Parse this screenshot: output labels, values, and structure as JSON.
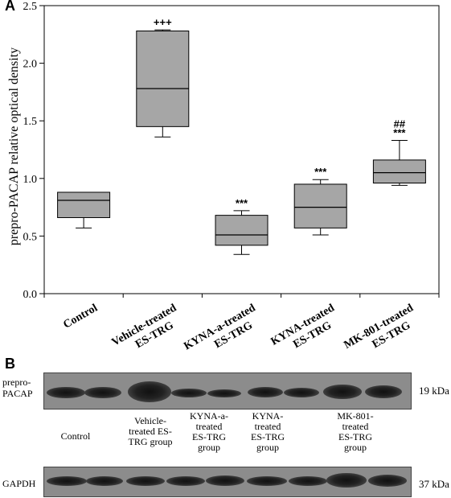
{
  "panel_a_label": "A",
  "panel_b_label": "B",
  "chart_data": {
    "type": "box",
    "ylabel": "prepro-PACAP relative optical density",
    "ylim": [
      0,
      2.5
    ],
    "yticks": [
      "0.0",
      "0.5",
      "1.0",
      "1.5",
      "2.0",
      "2.5"
    ],
    "categories": [
      [
        "Control"
      ],
      [
        "Vehicle-treated",
        "ES-TRG"
      ],
      [
        "KYNA-a-treated",
        "ES-TRG"
      ],
      [
        "KYNA-treated",
        "ES-TRG"
      ],
      [
        "MK-801-treated",
        "ES-TRG"
      ]
    ],
    "boxes": [
      {
        "whisker_low": 0.57,
        "q1": 0.66,
        "median": 0.81,
        "q3": 0.88,
        "whisker_high": 0.88
      },
      {
        "whisker_low": 1.36,
        "q1": 1.45,
        "median": 1.78,
        "q3": 2.28,
        "whisker_high": 2.29
      },
      {
        "whisker_low": 0.34,
        "q1": 0.42,
        "median": 0.51,
        "q3": 0.68,
        "whisker_high": 0.72
      },
      {
        "whisker_low": 0.51,
        "q1": 0.57,
        "median": 0.75,
        "q3": 0.95,
        "whisker_high": 0.99
      },
      {
        "whisker_low": 0.94,
        "q1": 0.96,
        "median": 1.05,
        "q3": 1.16,
        "whisker_high": 1.33
      }
    ],
    "annotations": [
      [
        "+++"
      ],
      [
        "***"
      ],
      [
        "***"
      ],
      [
        "##",
        "***"
      ]
    ],
    "annotation_targets": [
      1,
      2,
      3,
      4
    ],
    "box_color": "#a6a6a6"
  },
  "blot": {
    "row1_label": [
      "prepro-",
      "PACAP"
    ],
    "row1_kda": "19 kDa",
    "row2_label": "GAPDH",
    "row2_kda": "37 kDa",
    "lane_labels": [
      [
        "Control"
      ],
      [
        "Vehicle-",
        "treated ES-",
        "TRG group"
      ],
      [
        "KYNA-a-",
        "treated",
        "ES-TRG",
        "group"
      ],
      [
        "KYNA-",
        "treated",
        "ES-TRG",
        "group"
      ],
      [
        "MK-801-",
        "treated",
        "ES-TRG",
        "group"
      ]
    ]
  }
}
